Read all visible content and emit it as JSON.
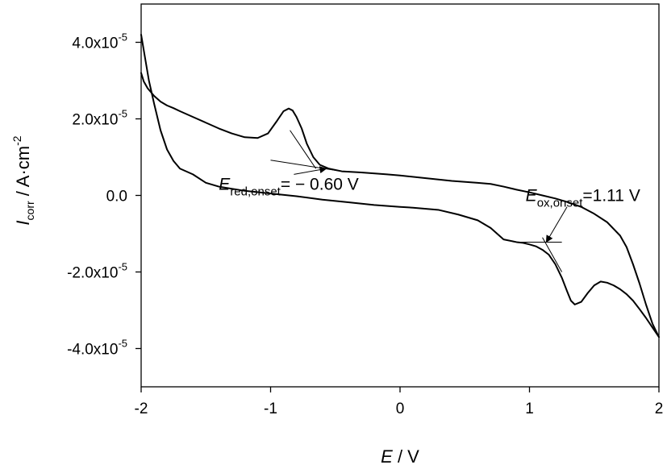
{
  "chart_data": {
    "type": "line",
    "xlim": [
      -2,
      2
    ],
    "ylim": [
      -5e-05,
      5e-05
    ],
    "x_ticks": [
      {
        "value": -2,
        "label": "-2"
      },
      {
        "value": -1,
        "label": "-1"
      },
      {
        "value": 0,
        "label": "0"
      },
      {
        "value": 1,
        "label": "1"
      },
      {
        "value": 2,
        "label": "2"
      }
    ],
    "y_ticks": [
      {
        "value": 4e-05,
        "mantissa": "4.0x10",
        "exp": "-5"
      },
      {
        "value": 2e-05,
        "mantissa": "2.0x10",
        "exp": "-5"
      },
      {
        "value": 0,
        "mantissa": "0.0",
        "exp": ""
      },
      {
        "value": -2e-05,
        "mantissa": "-2.0x10",
        "exp": "-5"
      },
      {
        "value": -4e-05,
        "mantissa": "-4.0x10",
        "exp": "-5"
      }
    ],
    "xlabel": {
      "symbol": "E",
      "unit": " / V"
    },
    "ylabel": {
      "symbol": "I",
      "sub": "corr",
      "unit": " / A·cm",
      "sup": "-2"
    },
    "grid": false,
    "series": [
      {
        "x": [
          -2.0,
          -1.98,
          -1.95,
          -1.9,
          -1.85,
          -1.8,
          -1.75,
          -1.7,
          -1.6,
          -1.5,
          -1.4,
          -1.3,
          -1.2,
          -1.1,
          -1.02,
          -0.95,
          -0.9,
          -0.86,
          -0.83,
          -0.8,
          -0.76,
          -0.72,
          -0.67,
          -0.62,
          -0.55,
          -0.45,
          -0.3,
          -0.1,
          0.0,
          0.2,
          0.4,
          0.6,
          0.7,
          0.8,
          0.9,
          1.0,
          1.1,
          1.2,
          1.3,
          1.4,
          1.5,
          1.6,
          1.7,
          1.75,
          1.8,
          1.85,
          1.9,
          1.95,
          2.0
        ],
        "y": [
          3.2e-05,
          2.98e-05,
          2.8e-05,
          2.6e-05,
          2.45e-05,
          2.35e-05,
          2.28e-05,
          2.2e-05,
          2.05e-05,
          1.9e-05,
          1.75e-05,
          1.62e-05,
          1.52e-05,
          1.5e-05,
          1.62e-05,
          1.95e-05,
          2.2e-05,
          2.27e-05,
          2.22e-05,
          2.05e-05,
          1.75e-05,
          1.35e-05,
          1e-05,
          8e-06,
          7e-06,
          6.3e-06,
          6e-06,
          5.5e-06,
          5.2e-06,
          4.5e-06,
          3.8e-06,
          3.3e-06,
          3e-06,
          2.3e-06,
          1.5e-06,
          8e-07,
          0.0,
          -8e-07,
          -1.8e-06,
          -3e-06,
          -4.8e-06,
          -7e-06,
          -1.05e-05,
          -1.35e-05,
          -1.8e-05,
          -2.3e-05,
          -2.85e-05,
          -3.35e-05,
          -3.7e-05
        ]
      },
      {
        "x": [
          2.0,
          1.95,
          1.9,
          1.85,
          1.8,
          1.75,
          1.7,
          1.65,
          1.6,
          1.55,
          1.5,
          1.45,
          1.4,
          1.35,
          1.32,
          1.29,
          1.25,
          1.2,
          1.15,
          1.1,
          1.05,
          1.0,
          0.95,
          0.9,
          0.8,
          0.7,
          0.6,
          0.45,
          0.3,
          0.1,
          0.0,
          -0.2,
          -0.4,
          -0.6,
          -0.8,
          -1.0,
          -1.2,
          -1.4,
          -1.5,
          -1.6,
          -1.7,
          -1.75,
          -1.8,
          -1.85,
          -1.9,
          -1.94,
          -1.97,
          -2.0
        ],
        "y": [
          -3.7e-05,
          -3.45e-05,
          -3.2e-05,
          -2.97e-05,
          -2.75e-05,
          -2.58e-05,
          -2.45e-05,
          -2.35e-05,
          -2.28e-05,
          -2.25e-05,
          -2.35e-05,
          -2.55e-05,
          -2.78e-05,
          -2.85e-05,
          -2.75e-05,
          -2.5e-05,
          -2.15e-05,
          -1.8e-05,
          -1.55e-05,
          -1.42e-05,
          -1.33e-05,
          -1.28e-05,
          -1.24e-05,
          -1.22e-05,
          -1.15e-05,
          -8.5e-06,
          -6.5e-06,
          -5e-06,
          -3.8e-06,
          -3.2e-06,
          -3e-06,
          -2.5e-06,
          -1.8e-06,
          -1.1e-06,
          -2e-07,
          5e-07,
          1.2e-06,
          2.3e-06,
          3.3e-06,
          5.5e-06,
          7e-06,
          9e-06,
          1.2e-05,
          1.7e-05,
          2.4e-05,
          3e-05,
          3.6e-05,
          4.2e-05
        ]
      }
    ],
    "tangent_lines": [
      {
        "x": [
          -1.0,
          -0.45
        ],
        "y": [
          9.2e-06,
          6.3e-06
        ]
      },
      {
        "x": [
          -0.65,
          -0.85
        ],
        "y": [
          7e-06,
          1.7e-05
        ]
      },
      {
        "x": [
          0.9,
          1.25
        ],
        "y": [
          -1.22e-05,
          -1.22e-05
        ]
      },
      {
        "x": [
          1.1,
          1.25
        ],
        "y": [
          -1.1e-05,
          -2e-05
        ]
      }
    ],
    "annotations": [
      {
        "symbol": "E",
        "sub": "red,onset",
        "text": "= − 0.60 V",
        "label_x": -1.4,
        "label_y": 1.5e-06,
        "arrow_from": [
          -0.82,
          5.5e-06
        ],
        "arrow_to": [
          -0.57,
          7e-06
        ]
      },
      {
        "symbol": "E",
        "sub": "ox,onset",
        "text": "=1.11 V",
        "label_x": 0.97,
        "label_y": -1.5e-06,
        "arrow_from": [
          1.29,
          -3e-06
        ],
        "arrow_to": [
          1.13,
          -1.22e-05
        ]
      }
    ]
  }
}
